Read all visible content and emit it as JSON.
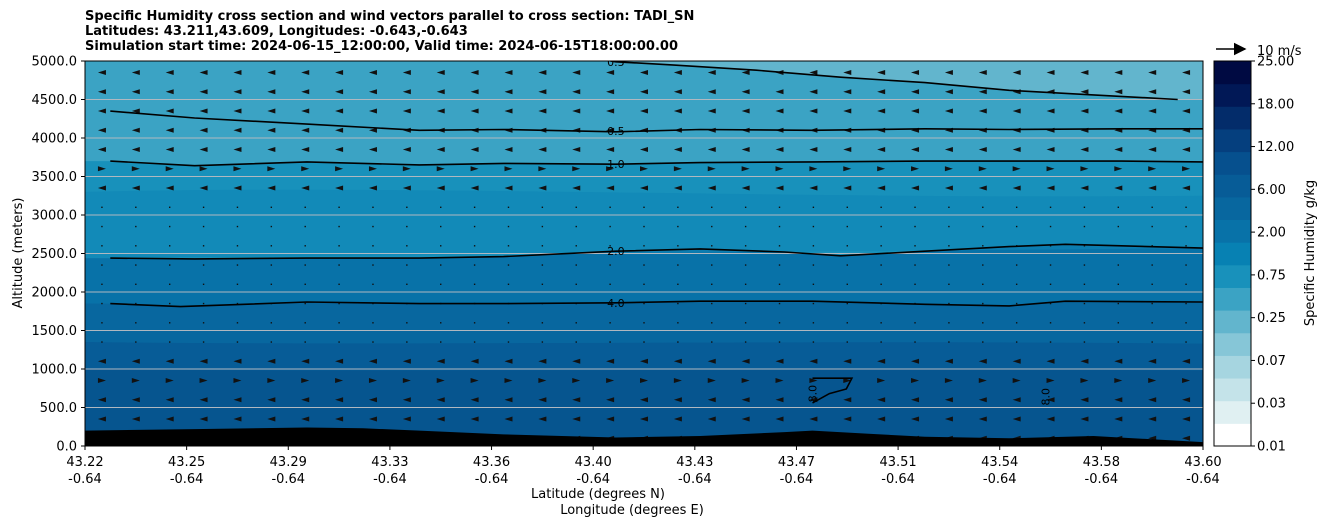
{
  "chart_data": {
    "type": "contour",
    "title_lines": [
      "Specific Humidity cross section and wind vectors parallel to cross section: TADI_SN",
      "Latitudes: 43.211,43.609, Longitudes: -0.643,-0.643",
      "Simulation start time: 2024-06-15_12:00:00, Valid time: 2024-06-15T18:00:00.00"
    ],
    "ylabel": "Altitude (meters)",
    "xlabel_line1": "Latitude (degrees N)",
    "xlabel_line2": "Longitude (degrees E)",
    "ylim": [
      0,
      5000
    ],
    "y_ticks": [
      "0.0",
      "500.0",
      "1000.0",
      "1500.0",
      "2000.0",
      "2500.0",
      "3000.0",
      "3500.0",
      "4000.0",
      "4500.0",
      "5000.0"
    ],
    "x_ticks_lat": [
      "43.22",
      "43.25",
      "43.29",
      "43.33",
      "43.36",
      "43.40",
      "43.43",
      "43.47",
      "43.51",
      "43.54",
      "43.58",
      "43.60"
    ],
    "x_ticks_lon": [
      "-0.64",
      "-0.64",
      "-0.64",
      "-0.64",
      "-0.64",
      "-0.64",
      "-0.64",
      "-0.64",
      "-0.64",
      "-0.64",
      "-0.64",
      "-0.64"
    ],
    "grid": "horizontal",
    "colorbar": {
      "label": "Specific Humidity g/kg",
      "levels": [
        "0.01",
        "0.03",
        "0.07",
        "0.25",
        "0.75",
        "2.00",
        "6.00",
        "12.00",
        "18.00",
        "25.00"
      ],
      "colors": [
        "#ffffff",
        "#e0f0f2",
        "#c4e3e9",
        "#a6d5e0",
        "#86c6d7",
        "#62b5cd",
        "#3ba3c4",
        "#1891bb",
        "#0781b3",
        "#0872a8",
        "#08679f",
        "#075c97",
        "#06508e",
        "#053f7e",
        "#032c6a",
        "#011856",
        "#000a42"
      ]
    },
    "quiver_key": "10 m/s",
    "contour_lines": [
      {
        "label": "0.5",
        "points": [
          [
            43.398,
            5000
          ],
          [
            43.4,
            4990
          ],
          [
            43.42,
            4950
          ],
          [
            43.45,
            4880
          ],
          [
            43.48,
            4790
          ],
          [
            43.51,
            4720
          ],
          [
            43.54,
            4620
          ],
          [
            43.57,
            4560
          ],
          [
            43.6,
            4500
          ]
        ]
      },
      {
        "label": "0.5",
        "points": [
          [
            43.22,
            4350
          ],
          [
            43.25,
            4260
          ],
          [
            43.29,
            4180
          ],
          [
            43.33,
            4100
          ],
          [
            43.36,
            4110
          ],
          [
            43.4,
            4080
          ],
          [
            43.43,
            4110
          ],
          [
            43.47,
            4100
          ],
          [
            43.51,
            4120
          ],
          [
            43.54,
            4110
          ],
          [
            43.58,
            4120
          ],
          [
            43.609,
            4120
          ]
        ]
      },
      {
        "label": "1.0",
        "points": [
          [
            43.22,
            3700
          ],
          [
            43.25,
            3640
          ],
          [
            43.29,
            3690
          ],
          [
            43.33,
            3650
          ],
          [
            43.36,
            3670
          ],
          [
            43.4,
            3660
          ],
          [
            43.43,
            3680
          ],
          [
            43.47,
            3690
          ],
          [
            43.51,
            3700
          ],
          [
            43.54,
            3700
          ],
          [
            43.58,
            3700
          ],
          [
            43.609,
            3690
          ]
        ]
      },
      {
        "label": "2.0",
        "points": [
          [
            43.22,
            2440
          ],
          [
            43.25,
            2430
          ],
          [
            43.29,
            2440
          ],
          [
            43.33,
            2440
          ],
          [
            43.36,
            2460
          ],
          [
            43.4,
            2530
          ],
          [
            43.43,
            2560
          ],
          [
            43.46,
            2520
          ],
          [
            43.48,
            2470
          ],
          [
            43.51,
            2530
          ],
          [
            43.54,
            2590
          ],
          [
            43.56,
            2620
          ],
          [
            43.58,
            2600
          ],
          [
            43.609,
            2570
          ]
        ]
      },
      {
        "label": "4.0",
        "points": [
          [
            43.22,
            1850
          ],
          [
            43.245,
            1810
          ],
          [
            43.29,
            1870
          ],
          [
            43.33,
            1850
          ],
          [
            43.36,
            1850
          ],
          [
            43.4,
            1860
          ],
          [
            43.43,
            1880
          ],
          [
            43.47,
            1880
          ],
          [
            43.51,
            1840
          ],
          [
            43.54,
            1820
          ],
          [
            43.56,
            1880
          ],
          [
            43.609,
            1870
          ]
        ]
      },
      {
        "label": "8.0",
        "points": [
          [
            43.47,
            880
          ],
          [
            43.484,
            880
          ],
          [
            43.482,
            740
          ],
          [
            43.476,
            680
          ],
          [
            43.47,
            560
          ]
        ]
      }
    ],
    "contour_labels": [
      {
        "text": "0.5",
        "x": 43.4,
        "y": 4990
      },
      {
        "text": "0.5",
        "x": 43.4,
        "y": 4090
      },
      {
        "text": "1.0",
        "x": 43.4,
        "y": 3660
      },
      {
        "text": "2.0",
        "x": 43.4,
        "y": 2530
      },
      {
        "text": "4.0",
        "x": 43.4,
        "y": 1860
      },
      {
        "text": "8.0",
        "x": 43.47,
        "y": 680,
        "rotate": true
      },
      {
        "text": "8.0",
        "x": 43.553,
        "y": 640,
        "rotate": true
      }
    ],
    "terrain": [
      [
        43.211,
        200
      ],
      [
        43.25,
        220
      ],
      [
        43.29,
        240
      ],
      [
        43.31,
        230
      ],
      [
        43.33,
        200
      ],
      [
        43.36,
        150
      ],
      [
        43.4,
        110
      ],
      [
        43.43,
        130
      ],
      [
        43.46,
        180
      ],
      [
        43.47,
        200
      ],
      [
        43.49,
        160
      ],
      [
        43.51,
        120
      ],
      [
        43.54,
        100
      ],
      [
        43.57,
        130
      ],
      [
        43.609,
        50
      ]
    ]
  }
}
